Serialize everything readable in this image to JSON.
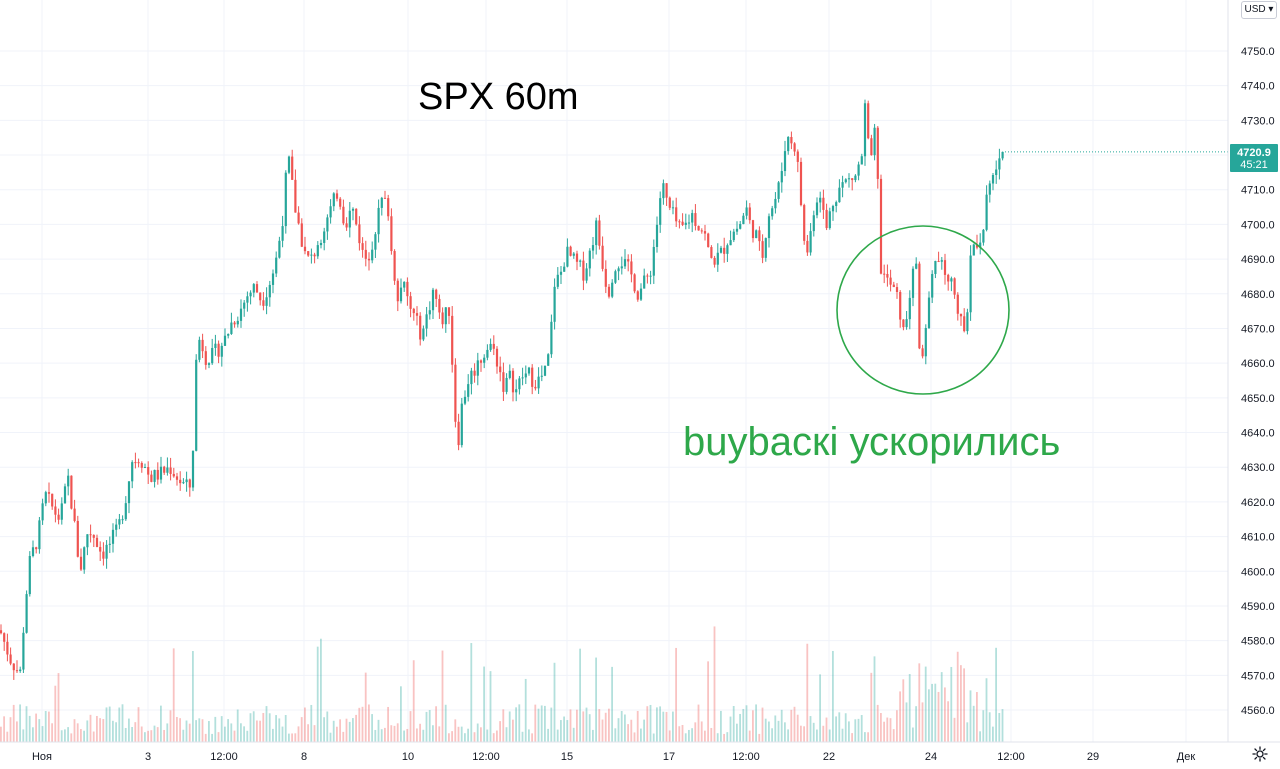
{
  "currency_button": {
    "label": "USD"
  },
  "last_price": {
    "value": "4720.9",
    "countdown": "45:21",
    "color": "#26a69a"
  },
  "annotations": {
    "title": "SPX 60m",
    "comment": "buybacкi ускорились",
    "comment_color": "#2ea84a"
  },
  "colors": {
    "up": "#26a69a",
    "down": "#ef5350",
    "grid": "#f0f3fa"
  },
  "chart_data": {
    "type": "candlestick",
    "title": "SPX 60m",
    "y_axis": {
      "range": [
        4552,
        4756
      ],
      "ticks": [
        4560,
        4570,
        4580,
        4590,
        4600,
        4610,
        4620,
        4630,
        4640,
        4650,
        4660,
        4670,
        4680,
        4690,
        4700,
        4710,
        4720,
        4730,
        4740,
        4750
      ],
      "tick_labels": [
        "4560.0",
        "4570.0",
        "4580.0",
        "4590.0",
        "4600.0",
        "4610.0",
        "4620.0",
        "4630.0",
        "4640.0",
        "4650.0",
        "4660.0",
        "4670.0",
        "4680.0",
        "4690.0",
        "4700.0",
        "4710.0",
        "4720.0",
        "4730.0",
        "4740.0",
        "4750.0"
      ]
    },
    "x_axis": {
      "tick_labels": [
        "Ноя",
        "3",
        "12:00",
        "8",
        "10",
        "12:00",
        "15",
        "17",
        "12:00",
        "22",
        "24",
        "12:00",
        "29",
        "Дек"
      ]
    },
    "price_path": [
      [
        0,
        4583
      ],
      [
        10,
        4575
      ],
      [
        20,
        4570
      ],
      [
        25,
        4590
      ],
      [
        30,
        4603
      ],
      [
        38,
        4610
      ],
      [
        45,
        4622
      ],
      [
        55,
        4617
      ],
      [
        60,
        4615
      ],
      [
        68,
        4627
      ],
      [
        75,
        4612
      ],
      [
        80,
        4600
      ],
      [
        88,
        4612
      ],
      [
        95,
        4610
      ],
      [
        102,
        4605
      ],
      [
        110,
        4608
      ],
      [
        118,
        4612
      ],
      [
        125,
        4620
      ],
      [
        132,
        4632
      ],
      [
        140,
        4633
      ],
      [
        150,
        4627
      ],
      [
        160,
        4628
      ],
      [
        170,
        4630
      ],
      [
        180,
        4626
      ],
      [
        188,
        4624
      ],
      [
        192,
        4625
      ],
      [
        195,
        4658
      ],
      [
        200,
        4668
      ],
      [
        205,
        4662
      ],
      [
        212,
        4662
      ],
      [
        218,
        4664
      ],
      [
        225,
        4667
      ],
      [
        232,
        4672
      ],
      [
        240,
        4675
      ],
      [
        248,
        4680
      ],
      [
        255,
        4682
      ],
      [
        262,
        4678
      ],
      [
        268,
        4682
      ],
      [
        275,
        4688
      ],
      [
        282,
        4700
      ],
      [
        288,
        4720
      ],
      [
        295,
        4705
      ],
      [
        300,
        4698
      ],
      [
        306,
        4690
      ],
      [
        312,
        4690
      ],
      [
        318,
        4695
      ],
      [
        325,
        4700
      ],
      [
        332,
        4705
      ],
      [
        338,
        4710
      ],
      [
        345,
        4700
      ],
      [
        352,
        4705
      ],
      [
        358,
        4698
      ],
      [
        364,
        4690
      ],
      [
        370,
        4692
      ],
      [
        376,
        4700
      ],
      [
        382,
        4707
      ],
      [
        388,
        4705
      ],
      [
        392,
        4690
      ],
      [
        398,
        4680
      ],
      [
        404,
        4682
      ],
      [
        410,
        4676
      ],
      [
        416,
        4672
      ],
      [
        422,
        4668
      ],
      [
        428,
        4675
      ],
      [
        434,
        4682
      ],
      [
        440,
        4672
      ],
      [
        446,
        4674
      ],
      [
        450,
        4676
      ],
      [
        454,
        4648
      ],
      [
        458,
        4637
      ],
      [
        462,
        4648
      ],
      [
        468,
        4655
      ],
      [
        474,
        4658
      ],
      [
        480,
        4661
      ],
      [
        486,
        4664
      ],
      [
        492,
        4665
      ],
      [
        498,
        4660
      ],
      [
        504,
        4653
      ],
      [
        510,
        4656
      ],
      [
        516,
        4652
      ],
      [
        522,
        4656
      ],
      [
        528,
        4657
      ],
      [
        534,
        4655
      ],
      [
        540,
        4655
      ],
      [
        546,
        4658
      ],
      [
        550,
        4664
      ],
      [
        554,
        4683
      ],
      [
        560,
        4685
      ],
      [
        566,
        4692
      ],
      [
        572,
        4690
      ],
      [
        578,
        4688
      ],
      [
        584,
        4686
      ],
      [
        590,
        4692
      ],
      [
        596,
        4700
      ],
      [
        602,
        4690
      ],
      [
        608,
        4680
      ],
      [
        614,
        4688
      ],
      [
        620,
        4690
      ],
      [
        626,
        4688
      ],
      [
        632,
        4685
      ],
      [
        638,
        4680
      ],
      [
        644,
        4683
      ],
      [
        650,
        4686
      ],
      [
        656,
        4698
      ],
      [
        662,
        4712
      ],
      [
        668,
        4705
      ],
      [
        674,
        4702
      ],
      [
        680,
        4698
      ],
      [
        686,
        4700
      ],
      [
        692,
        4703
      ],
      [
        698,
        4700
      ],
      [
        704,
        4698
      ],
      [
        710,
        4690
      ],
      [
        716,
        4690
      ],
      [
        722,
        4692
      ],
      [
        728,
        4696
      ],
      [
        734,
        4698
      ],
      [
        740,
        4700
      ],
      [
        746,
        4705
      ],
      [
        750,
        4700
      ],
      [
        756,
        4697
      ],
      [
        762,
        4690
      ],
      [
        768,
        4703
      ],
      [
        774,
        4706
      ],
      [
        780,
        4712
      ],
      [
        786,
        4725
      ],
      [
        792,
        4724
      ],
      [
        796,
        4722
      ],
      [
        800,
        4710
      ],
      [
        804,
        4695
      ],
      [
        808,
        4692
      ],
      [
        814,
        4705
      ],
      [
        820,
        4710
      ],
      [
        826,
        4698
      ],
      [
        832,
        4706
      ],
      [
        838,
        4710
      ],
      [
        844,
        4712
      ],
      [
        850,
        4713
      ],
      [
        856,
        4714
      ],
      [
        862,
        4720
      ],
      [
        866,
        4738
      ],
      [
        870,
        4712
      ],
      [
        874,
        4728
      ],
      [
        877,
        4720
      ],
      [
        880,
        4688
      ],
      [
        886,
        4684
      ],
      [
        892,
        4682
      ],
      [
        898,
        4678
      ],
      [
        904,
        4668
      ],
      [
        910,
        4680
      ],
      [
        916,
        4690
      ],
      [
        920,
        4660
      ],
      [
        926,
        4670
      ],
      [
        932,
        4688
      ],
      [
        938,
        4690
      ],
      [
        944,
        4686
      ],
      [
        950,
        4684
      ],
      [
        956,
        4680
      ],
      [
        960,
        4672
      ],
      [
        966,
        4668
      ],
      [
        970,
        4690
      ],
      [
        976,
        4694
      ],
      [
        982,
        4697
      ],
      [
        988,
        4710
      ],
      [
        994,
        4714
      ],
      [
        1000,
        4719
      ],
      [
        1005,
        4720.9
      ]
    ]
  }
}
